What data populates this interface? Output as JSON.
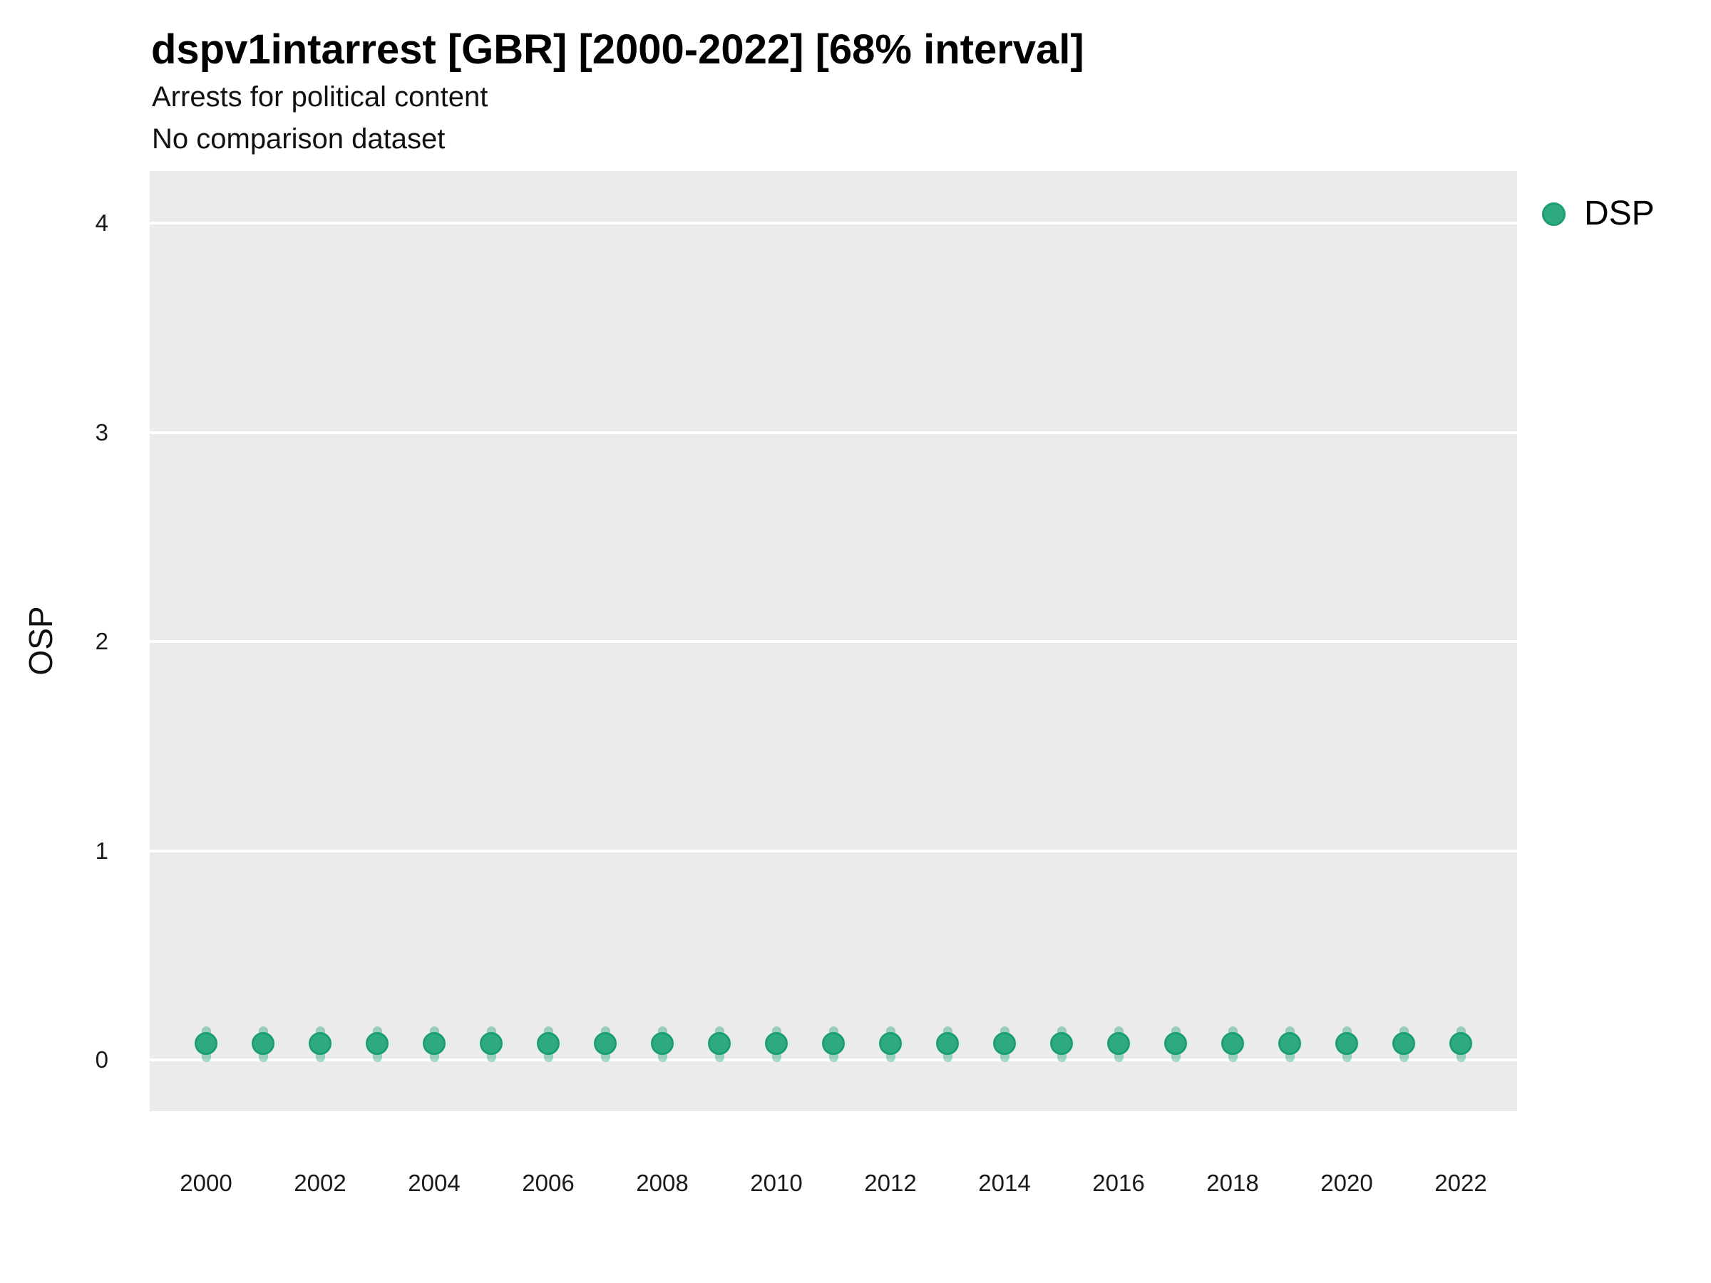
{
  "header": {
    "title": "dspv1intarrest [GBR] [2000-2022] [68% interval]",
    "subtitle1": "Arrests for political content",
    "subtitle2": "No comparison dataset"
  },
  "legend": {
    "position": "right-top",
    "items": [
      {
        "label": "DSP",
        "color": "#2FAB80"
      }
    ]
  },
  "colors": {
    "panel_background": "#EBEBEB",
    "gridline": "#FFFFFF",
    "point_fill": "#2FAB80",
    "point_stroke": "#1E9E70",
    "interval_fill": "rgba(47,171,128,0.45)",
    "text": "#1a1a1a"
  },
  "chart_data": {
    "type": "scatter",
    "title": "dspv1intarrest [GBR] [2000-2022] [68% interval]",
    "subtitle": "Arrests for political content",
    "comparison": "No comparison dataset",
    "interval": "68%",
    "xlabel": "",
    "ylabel": "OSP",
    "x_ticks": [
      2000,
      2002,
      2004,
      2006,
      2008,
      2010,
      2012,
      2014,
      2016,
      2018,
      2020,
      2022
    ],
    "y_ticks": [
      0,
      1,
      2,
      3,
      4
    ],
    "xlim": [
      1999,
      2023
    ],
    "ylim": [
      -0.245,
      4.25
    ],
    "grid": "horizontal-major-only",
    "legend_position": "right-top",
    "series": [
      {
        "name": "DSP",
        "color": "#2FAB80",
        "points": [
          {
            "year": 2000,
            "value": 0.08,
            "lo": -0.01,
            "hi": 0.16
          },
          {
            "year": 2001,
            "value": 0.08,
            "lo": -0.01,
            "hi": 0.16
          },
          {
            "year": 2002,
            "value": 0.08,
            "lo": -0.01,
            "hi": 0.16
          },
          {
            "year": 2003,
            "value": 0.08,
            "lo": -0.01,
            "hi": 0.16
          },
          {
            "year": 2004,
            "value": 0.08,
            "lo": -0.01,
            "hi": 0.16
          },
          {
            "year": 2005,
            "value": 0.08,
            "lo": -0.01,
            "hi": 0.16
          },
          {
            "year": 2006,
            "value": 0.08,
            "lo": -0.01,
            "hi": 0.16
          },
          {
            "year": 2007,
            "value": 0.08,
            "lo": -0.01,
            "hi": 0.16
          },
          {
            "year": 2008,
            "value": 0.08,
            "lo": -0.01,
            "hi": 0.16
          },
          {
            "year": 2009,
            "value": 0.08,
            "lo": -0.01,
            "hi": 0.16
          },
          {
            "year": 2010,
            "value": 0.08,
            "lo": -0.01,
            "hi": 0.16
          },
          {
            "year": 2011,
            "value": 0.08,
            "lo": -0.01,
            "hi": 0.16
          },
          {
            "year": 2012,
            "value": 0.08,
            "lo": -0.01,
            "hi": 0.16
          },
          {
            "year": 2013,
            "value": 0.08,
            "lo": -0.01,
            "hi": 0.16
          },
          {
            "year": 2014,
            "value": 0.08,
            "lo": -0.01,
            "hi": 0.16
          },
          {
            "year": 2015,
            "value": 0.08,
            "lo": -0.01,
            "hi": 0.16
          },
          {
            "year": 2016,
            "value": 0.08,
            "lo": -0.01,
            "hi": 0.16
          },
          {
            "year": 2017,
            "value": 0.08,
            "lo": -0.01,
            "hi": 0.16
          },
          {
            "year": 2018,
            "value": 0.08,
            "lo": -0.01,
            "hi": 0.16
          },
          {
            "year": 2019,
            "value": 0.08,
            "lo": -0.01,
            "hi": 0.16
          },
          {
            "year": 2020,
            "value": 0.08,
            "lo": -0.01,
            "hi": 0.16
          },
          {
            "year": 2021,
            "value": 0.08,
            "lo": -0.01,
            "hi": 0.16
          },
          {
            "year": 2022,
            "value": 0.08,
            "lo": -0.01,
            "hi": 0.16
          }
        ]
      }
    ]
  }
}
